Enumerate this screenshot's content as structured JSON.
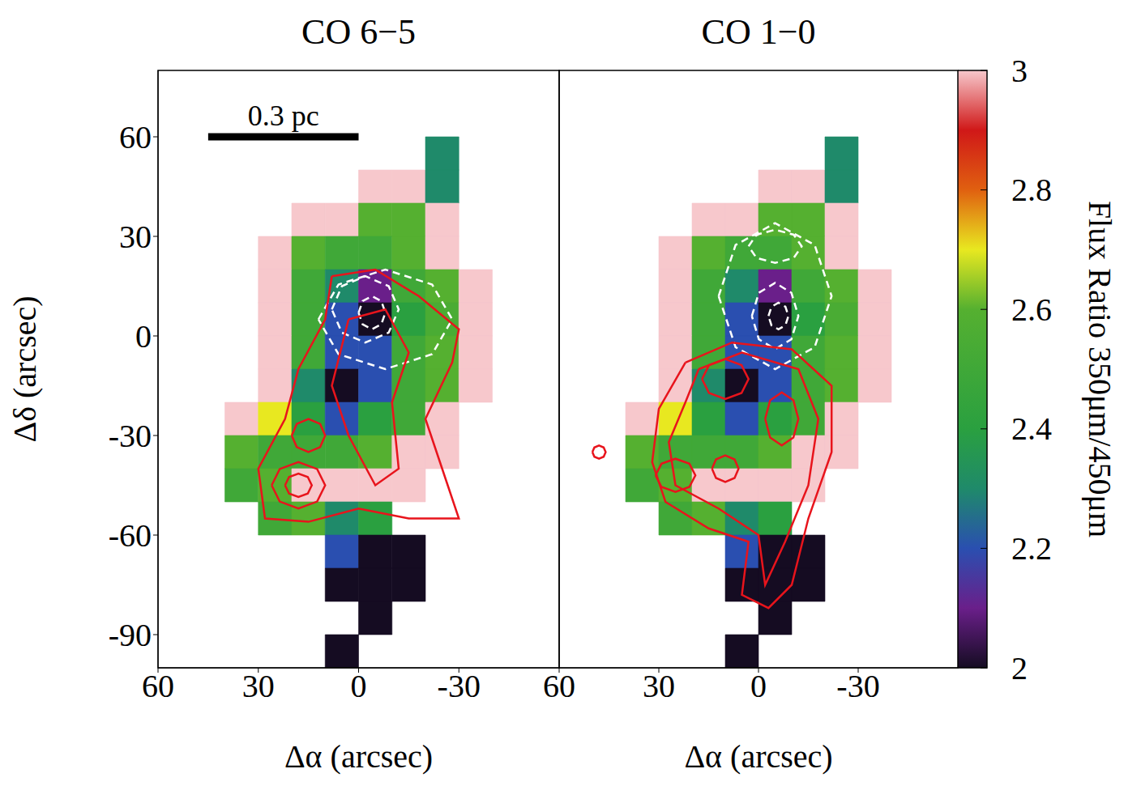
{
  "chart_data": {
    "type": "heatmap",
    "x_label": "Δα (arcsec)",
    "y_label": "Δδ (arcsec)",
    "xlim": [
      60,
      -60
    ],
    "xticks": [
      60,
      30,
      0,
      -30
    ],
    "ylim": [
      -100,
      80
    ],
    "yticks": [
      60,
      30,
      0,
      -30,
      -60,
      -90
    ],
    "map": {
      "cell_size": 10,
      "x": [
        35,
        25,
        15,
        5,
        -5,
        -15,
        -25,
        -35
      ],
      "y": [
        55,
        45,
        35,
        25,
        15,
        5,
        -5,
        -15,
        -25,
        -35,
        -45,
        -55,
        -65,
        -75,
        -85,
        -95
      ],
      "values": [
        [
          null,
          null,
          null,
          null,
          null,
          null,
          2.3,
          null
        ],
        [
          null,
          null,
          null,
          null,
          3.0,
          3.0,
          2.3,
          null
        ],
        [
          null,
          null,
          3.0,
          3.0,
          2.6,
          2.6,
          3.0,
          null
        ],
        [
          null,
          3.0,
          2.6,
          2.5,
          2.5,
          2.6,
          3.0,
          null
        ],
        [
          null,
          3.0,
          2.5,
          2.3,
          2.1,
          2.5,
          2.6,
          3.0
        ],
        [
          null,
          3.0,
          2.5,
          2.2,
          2.0,
          2.4,
          2.55,
          3.0
        ],
        [
          null,
          3.0,
          2.5,
          2.2,
          2.2,
          2.5,
          2.6,
          3.0
        ],
        [
          null,
          3.0,
          2.3,
          2.0,
          2.2,
          2.5,
          2.6,
          3.0
        ],
        [
          3.0,
          2.7,
          2.4,
          2.2,
          2.4,
          2.5,
          3.0,
          null
        ],
        [
          2.6,
          2.5,
          2.5,
          2.5,
          2.6,
          3.0,
          3.0,
          null
        ],
        [
          2.5,
          2.6,
          3.0,
          3.0,
          3.0,
          3.0,
          null,
          null
        ],
        [
          null,
          2.5,
          2.6,
          2.3,
          2.4,
          null,
          null,
          null
        ],
        [
          null,
          null,
          null,
          2.2,
          2.0,
          2.0,
          null,
          null
        ],
        [
          null,
          null,
          null,
          2.0,
          2.0,
          2.0,
          null,
          null
        ],
        [
          null,
          null,
          null,
          null,
          2.0,
          null,
          null,
          null
        ],
        [
          null,
          null,
          null,
          2.0,
          null,
          null,
          null,
          null
        ]
      ]
    },
    "colorbar": {
      "label": "Flux Ratio 350μm/450μm",
      "range": [
        2,
        3
      ],
      "ticks": [
        2,
        2.2,
        2.4,
        2.6,
        2.8,
        3
      ]
    },
    "panels": [
      {
        "title": "CO 6−5",
        "scale_bar": {
          "label": "0.3 pc",
          "x": [
            45,
            0
          ],
          "y": 60
        },
        "contours": [
          {
            "color": "#ffffff",
            "line_style": "dashed",
            "points": [
              [
                12,
                5
              ],
              [
                6,
                15.5
              ],
              [
                -8,
                20
              ],
              [
                -22,
                15.5
              ],
              [
                -28,
                5
              ],
              [
                -22,
                -5.5
              ],
              [
                -8,
                -10
              ],
              [
                6,
                -5.5
              ]
            ]
          },
          {
            "color": "#ffffff",
            "line_style": "dashed",
            "points": [
              [
                8,
                8
              ],
              [
                5,
                15
              ],
              [
                -2,
                18
              ],
              [
                -9,
                15
              ],
              [
                -12,
                8
              ],
              [
                -9,
                1
              ],
              [
                -2,
                -2
              ],
              [
                5,
                1
              ]
            ]
          },
          {
            "color": "#ffffff",
            "line_style": "dashed",
            "points": [
              [
                0,
                7
              ],
              [
                -1.2,
                10.5
              ],
              [
                -4,
                12
              ],
              [
                -6.8,
                10.5
              ],
              [
                -8,
                7
              ],
              [
                -6.8,
                3.5
              ],
              [
                -4,
                2
              ],
              [
                -1.2,
                3.5
              ]
            ]
          },
          {
            "color": "#e8141c",
            "line_style": "solid",
            "points": [
              [
                8,
                18
              ],
              [
                -5,
                20
              ],
              [
                -18,
                12
              ],
              [
                -30,
                2
              ],
              [
                -28,
                -8
              ],
              [
                -20,
                -25
              ],
              [
                -25,
                -40
              ],
              [
                -30,
                -55
              ],
              [
                -15,
                -55
              ],
              [
                0,
                -52
              ],
              [
                15,
                -56
              ],
              [
                28,
                -55
              ],
              [
                30,
                -40
              ],
              [
                22,
                -25
              ],
              [
                18,
                -10
              ],
              [
                10,
                5
              ]
            ]
          },
          {
            "color": "#e8141c",
            "line_style": "solid",
            "points": [
              [
                3,
                5
              ],
              [
                -8,
                8
              ],
              [
                -15,
                -5
              ],
              [
                -10,
                -20
              ],
              [
                -12,
                -40
              ],
              [
                -5,
                -45
              ],
              [
                3,
                -30
              ],
              [
                8,
                -15
              ]
            ]
          },
          {
            "color": "#e8141c",
            "line_style": "solid",
            "points": [
              [
                20,
                -30
              ],
              [
                18.5,
                -26.5
              ],
              [
                15,
                -25
              ],
              [
                11.5,
                -26.5
              ],
              [
                10,
                -30
              ],
              [
                11.5,
                -33.5
              ],
              [
                15,
                -35
              ],
              [
                18.5,
                -33.5
              ]
            ]
          },
          {
            "color": "#e8141c",
            "line_style": "solid",
            "points": [
              [
                26,
                -45
              ],
              [
                23.6,
                -40.1
              ],
              [
                18,
                -38
              ],
              [
                12.4,
                -40.1
              ],
              [
                10,
                -45
              ],
              [
                12.4,
                -49.9
              ],
              [
                18,
                -52
              ],
              [
                23.6,
                -49.9
              ]
            ]
          },
          {
            "color": "#e8141c",
            "line_style": "solid",
            "points": [
              [
                22,
                -45
              ],
              [
                20.8,
                -42.5
              ],
              [
                18,
                -41.5
              ],
              [
                15.2,
                -42.5
              ],
              [
                14,
                -45
              ],
              [
                15.2,
                -47.5
              ],
              [
                18,
                -48.5
              ],
              [
                20.8,
                -47.5
              ]
            ]
          }
        ]
      },
      {
        "title": "CO 1−0",
        "tick_labels": "x",
        "contours": [
          {
            "color": "#ffffff",
            "line_style": "dashed",
            "points": [
              [
                12,
                12
              ],
              [
                6.9,
                27.4
              ],
              [
                -5,
                34
              ],
              [
                -16.9,
                27.4
              ],
              [
                -22,
                12
              ],
              [
                -16.9,
                -3.4
              ],
              [
                -5,
                -10
              ],
              [
                6.9,
                -3.4
              ]
            ]
          },
          {
            "color": "#ffffff",
            "line_style": "dashed",
            "points": [
              [
                3,
                27
              ],
              [
                0.6,
                30.5
              ],
              [
                -5,
                32
              ],
              [
                -10.6,
                30.5
              ],
              [
                -13,
                27
              ],
              [
                -10.6,
                23.5
              ],
              [
                -5,
                22
              ],
              [
                0.6,
                23.5
              ]
            ]
          },
          {
            "color": "#ffffff",
            "line_style": "dashed",
            "points": [
              [
                2,
                6
              ],
              [
                -0.1,
                13
              ],
              [
                -5,
                16
              ],
              [
                -9.9,
                13
              ],
              [
                -12,
                6
              ],
              [
                -9.9,
                -1
              ],
              [
                -5,
                -4
              ],
              [
                -0.1,
                -1
              ]
            ]
          },
          {
            "color": "#ffffff",
            "line_style": "dashed",
            "points": [
              [
                -3,
                6
              ],
              [
                -3.9,
                8.8
              ],
              [
                -6,
                10
              ],
              [
                -8.1,
                8.8
              ],
              [
                -9,
                6
              ],
              [
                -8.1,
                3.2
              ],
              [
                -6,
                2
              ],
              [
                -3.9,
                3.2
              ]
            ]
          },
          {
            "color": "#e8141c",
            "line_style": "solid",
            "points": [
              [
                22,
                -8
              ],
              [
                8,
                -2
              ],
              [
                -10,
                -4
              ],
              [
                -22,
                -15
              ],
              [
                -22,
                -35
              ],
              [
                -15,
                -55
              ],
              [
                -10,
                -75
              ],
              [
                -3,
                -82
              ],
              [
                5,
                -78
              ],
              [
                3,
                -62
              ],
              [
                15,
                -58
              ],
              [
                28,
                -50
              ],
              [
                32,
                -38
              ],
              [
                30,
                -22
              ]
            ]
          },
          {
            "color": "#e8141c",
            "line_style": "solid",
            "points": [
              [
                18,
                -10
              ],
              [
                5,
                -5
              ],
              [
                -12,
                -10
              ],
              [
                -18,
                -25
              ],
              [
                -15,
                -45
              ],
              [
                -8,
                -62
              ],
              [
                -2,
                -75
              ],
              [
                0,
                -60
              ],
              [
                12,
                -52
              ],
              [
                25,
                -45
              ],
              [
                27,
                -32
              ],
              [
                22,
                -20
              ]
            ]
          },
          {
            "color": "#e8141c",
            "line_style": "solid",
            "points": [
              [
                17,
                -13
              ],
              [
                14.9,
                -8.8
              ],
              [
                10,
                -7
              ],
              [
                5.1,
                -8.8
              ],
              [
                3,
                -13
              ],
              [
                5.1,
                -17.2
              ],
              [
                10,
                -19
              ],
              [
                14.9,
                -17.2
              ]
            ]
          },
          {
            "color": "#e8141c",
            "line_style": "solid",
            "points": [
              [
                -2,
                -25
              ],
              [
                -3.5,
                -19.4
              ],
              [
                -7,
                -17
              ],
              [
                -10.5,
                -19.4
              ],
              [
                -12,
                -25
              ],
              [
                -10.5,
                -30.6
              ],
              [
                -7,
                -33
              ],
              [
                -3.5,
                -30.6
              ]
            ]
          },
          {
            "color": "#e8141c",
            "line_style": "solid",
            "points": [
              [
                31,
                -42
              ],
              [
                29.2,
                -38.5
              ],
              [
                25,
                -37
              ],
              [
                20.8,
                -38.5
              ],
              [
                19,
                -42
              ],
              [
                20.8,
                -45.5
              ],
              [
                25,
                -47
              ],
              [
                29.2,
                -45.5
              ]
            ]
          },
          {
            "color": "#e8141c",
            "line_style": "solid",
            "points": [
              [
                14,
                -40
              ],
              [
                12.8,
                -37.2
              ],
              [
                10,
                -36
              ],
              [
                7.2,
                -37.2
              ],
              [
                6,
                -40
              ],
              [
                7.2,
                -42.8
              ],
              [
                10,
                -44
              ],
              [
                12.8,
                -42.8
              ]
            ]
          },
          {
            "color": "#e8141c",
            "line_style": "solid",
            "points": [
              [
                50,
                -35
              ],
              [
                49.4,
                -33.6
              ],
              [
                48,
                -33
              ],
              [
                46.6,
                -33.6
              ],
              [
                46,
                -35
              ],
              [
                46.6,
                -36.4
              ],
              [
                48,
                -37
              ],
              [
                49.4,
                -36.4
              ]
            ]
          }
        ]
      }
    ]
  }
}
